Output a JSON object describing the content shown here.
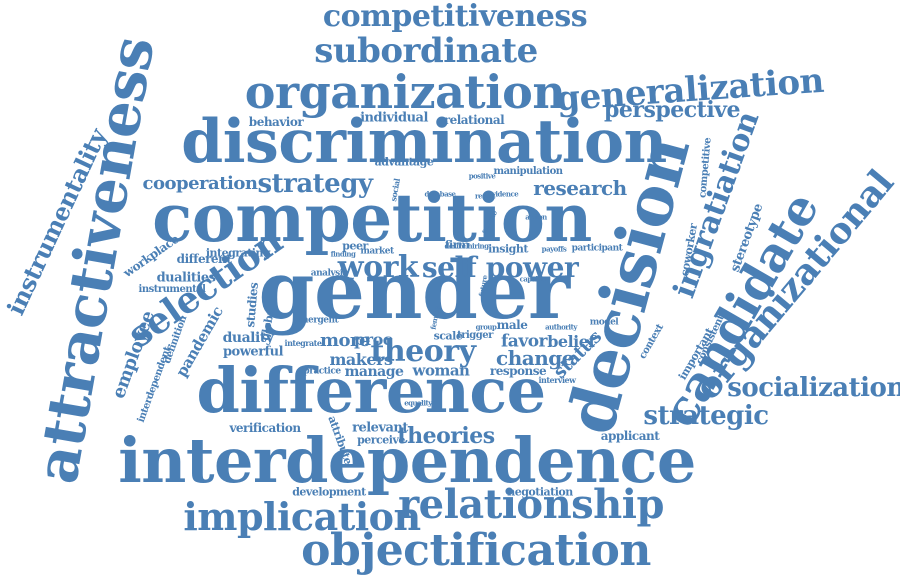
{
  "colors": {
    "word": "#4a7fb5",
    "background": "#ffffff"
  },
  "words": [
    {
      "text": "gender"
    },
    {
      "text": "competition"
    },
    {
      "text": "interdependence"
    },
    {
      "text": "difference"
    },
    {
      "text": "discrimination"
    },
    {
      "text": "decision"
    },
    {
      "text": "attractiveness"
    },
    {
      "text": "organization"
    },
    {
      "text": "candidate"
    },
    {
      "text": "objectification"
    },
    {
      "text": "relationship"
    },
    {
      "text": "implication"
    },
    {
      "text": "subordinate"
    },
    {
      "text": "generalization"
    },
    {
      "text": "competitiveness"
    },
    {
      "text": "organizational"
    },
    {
      "text": "selection"
    },
    {
      "text": "ingratiation"
    },
    {
      "text": "instrumentality"
    },
    {
      "text": "theory"
    },
    {
      "text": "work"
    },
    {
      "text": "self"
    },
    {
      "text": "power"
    },
    {
      "text": "socialization"
    },
    {
      "text": "strategic"
    },
    {
      "text": "perspective"
    },
    {
      "text": "strategy"
    },
    {
      "text": "research"
    },
    {
      "text": "cooperation"
    },
    {
      "text": "theories"
    },
    {
      "text": "employee"
    },
    {
      "text": "pandemic"
    },
    {
      "text": "more"
    },
    {
      "text": "makers"
    },
    {
      "text": "change"
    },
    {
      "text": "status"
    },
    {
      "text": "favor"
    },
    {
      "text": "belief"
    },
    {
      "text": "proc"
    },
    {
      "text": "woman"
    },
    {
      "text": "manage"
    },
    {
      "text": "stereotype"
    },
    {
      "text": "coworker"
    },
    {
      "text": "competitive"
    },
    {
      "text": "individual"
    },
    {
      "text": "relational"
    },
    {
      "text": "behavior"
    },
    {
      "text": "advantage"
    },
    {
      "text": "dualities"
    },
    {
      "text": "duality"
    },
    {
      "text": "powerful"
    },
    {
      "text": "different"
    },
    {
      "text": "workplace"
    },
    {
      "text": "integrating"
    },
    {
      "text": "verification"
    },
    {
      "text": "relevant"
    },
    {
      "text": "perceive"
    },
    {
      "text": "attribute"
    },
    {
      "text": "development"
    },
    {
      "text": "negotiation"
    },
    {
      "text": "applicant"
    },
    {
      "text": "important"
    },
    {
      "text": "consistent"
    },
    {
      "text": "context"
    },
    {
      "text": "global"
    },
    {
      "text": "studies"
    },
    {
      "text": "definition"
    },
    {
      "text": "interdependent"
    },
    {
      "text": "instrumental"
    },
    {
      "text": "manipulation"
    },
    {
      "text": "firm"
    },
    {
      "text": "response"
    },
    {
      "text": "male"
    },
    {
      "text": "scale"
    },
    {
      "text": "trigger"
    },
    {
      "text": "peer"
    },
    {
      "text": "market"
    },
    {
      "text": "analysis"
    },
    {
      "text": "emergent"
    },
    {
      "text": "integrate"
    },
    {
      "text": "practice"
    },
    {
      "text": "insight"
    },
    {
      "text": "participant"
    },
    {
      "text": "model"
    },
    {
      "text": "desire"
    },
    {
      "text": "hiring"
    },
    {
      "text": "database"
    },
    {
      "text": "positive"
    },
    {
      "text": "evidence"
    },
    {
      "text": "social"
    },
    {
      "text": "norm"
    },
    {
      "text": "interview"
    },
    {
      "text": "equality"
    },
    {
      "text": "female"
    },
    {
      "text": "sample"
    },
    {
      "text": "capable"
    },
    {
      "text": "future"
    },
    {
      "text": "authority"
    },
    {
      "text": "result"
    },
    {
      "text": "finding"
    },
    {
      "text": "group"
    },
    {
      "text": "action"
    },
    {
      "text": "payoffs"
    }
  ]
}
